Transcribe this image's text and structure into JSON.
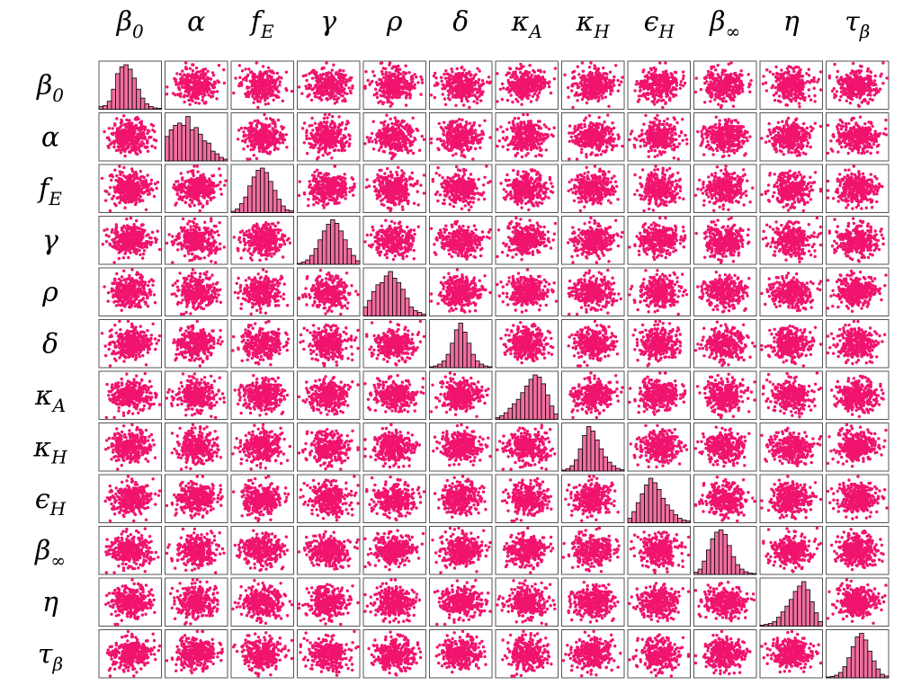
{
  "chart_data": {
    "type": "scatter",
    "subtype": "pair-plot matrix (scatter off-diagonal, histogram on diagonal)",
    "title": "",
    "marker_color": "#f0146e",
    "histogram_fill": "#f06ea0",
    "histogram_edge": "#000000",
    "variables": [
      {
        "id": "beta0",
        "base": "β",
        "sub": "0"
      },
      {
        "id": "alpha",
        "base": "α",
        "sub": ""
      },
      {
        "id": "fE",
        "base": "f",
        "sub": "E"
      },
      {
        "id": "gamma",
        "base": "γ",
        "sub": ""
      },
      {
        "id": "rho",
        "base": "ρ",
        "sub": ""
      },
      {
        "id": "delta",
        "base": "δ",
        "sub": ""
      },
      {
        "id": "kappaA",
        "base": "κ",
        "sub": "A"
      },
      {
        "id": "kappaH",
        "base": "κ",
        "sub": "H"
      },
      {
        "id": "epsilonH",
        "base": "ϵ",
        "sub": "H"
      },
      {
        "id": "betaInf",
        "base": "β",
        "sub": "∞"
      },
      {
        "id": "eta",
        "base": "η",
        "sub": ""
      },
      {
        "id": "tauBeta",
        "base": "τ",
        "sub": "β"
      }
    ],
    "diagonal_histograms": [
      [
        0.06,
        0.08,
        0.18,
        0.45,
        0.8,
        0.95,
        1.0,
        0.9,
        0.7,
        0.45,
        0.25,
        0.12,
        0.06,
        0.03,
        0.02
      ],
      [
        0.55,
        0.7,
        0.8,
        0.85,
        0.8,
        1.0,
        0.7,
        0.75,
        0.6,
        0.45,
        0.4,
        0.22,
        0.16,
        0.08,
        0.04
      ],
      [
        0.03,
        0.08,
        0.2,
        0.35,
        0.6,
        0.8,
        0.95,
        1.0,
        0.9,
        0.7,
        0.5,
        0.3,
        0.15,
        0.06,
        0.04
      ],
      [
        0.02,
        0.05,
        0.1,
        0.2,
        0.35,
        0.55,
        0.75,
        0.9,
        1.0,
        0.92,
        0.75,
        0.55,
        0.35,
        0.2,
        0.08
      ],
      [
        0.2,
        0.35,
        0.55,
        0.7,
        0.75,
        0.9,
        1.0,
        0.85,
        0.75,
        0.6,
        0.4,
        0.2,
        0.12,
        0.08,
        0.04
      ],
      [
        0.02,
        0.04,
        0.08,
        0.15,
        0.3,
        0.55,
        0.85,
        1.0,
        0.8,
        0.55,
        0.3,
        0.15,
        0.08,
        0.04,
        0.02
      ],
      [
        0.04,
        0.08,
        0.15,
        0.25,
        0.35,
        0.45,
        0.6,
        0.75,
        0.9,
        1.0,
        0.95,
        0.8,
        0.55,
        0.3,
        0.12
      ],
      [
        0.02,
        0.05,
        0.12,
        0.25,
        0.5,
        0.8,
        1.0,
        0.9,
        0.7,
        0.5,
        0.32,
        0.2,
        0.12,
        0.06,
        0.03
      ],
      [
        0.1,
        0.25,
        0.45,
        0.65,
        0.85,
        1.0,
        0.9,
        0.75,
        0.55,
        0.4,
        0.28,
        0.18,
        0.1,
        0.06,
        0.04
      ],
      [
        0.05,
        0.12,
        0.3,
        0.55,
        0.8,
        0.95,
        1.0,
        0.9,
        0.65,
        0.4,
        0.22,
        0.12,
        0.06,
        0.03,
        0.02
      ],
      [
        0.02,
        0.04,
        0.06,
        0.1,
        0.2,
        0.32,
        0.45,
        0.6,
        0.78,
        0.9,
        1.0,
        0.82,
        0.55,
        0.3,
        0.1
      ],
      [
        0.02,
        0.03,
        0.06,
        0.12,
        0.25,
        0.45,
        0.7,
        0.92,
        1.0,
        0.85,
        0.6,
        0.38,
        0.2,
        0.08,
        0.04
      ]
    ]
  }
}
